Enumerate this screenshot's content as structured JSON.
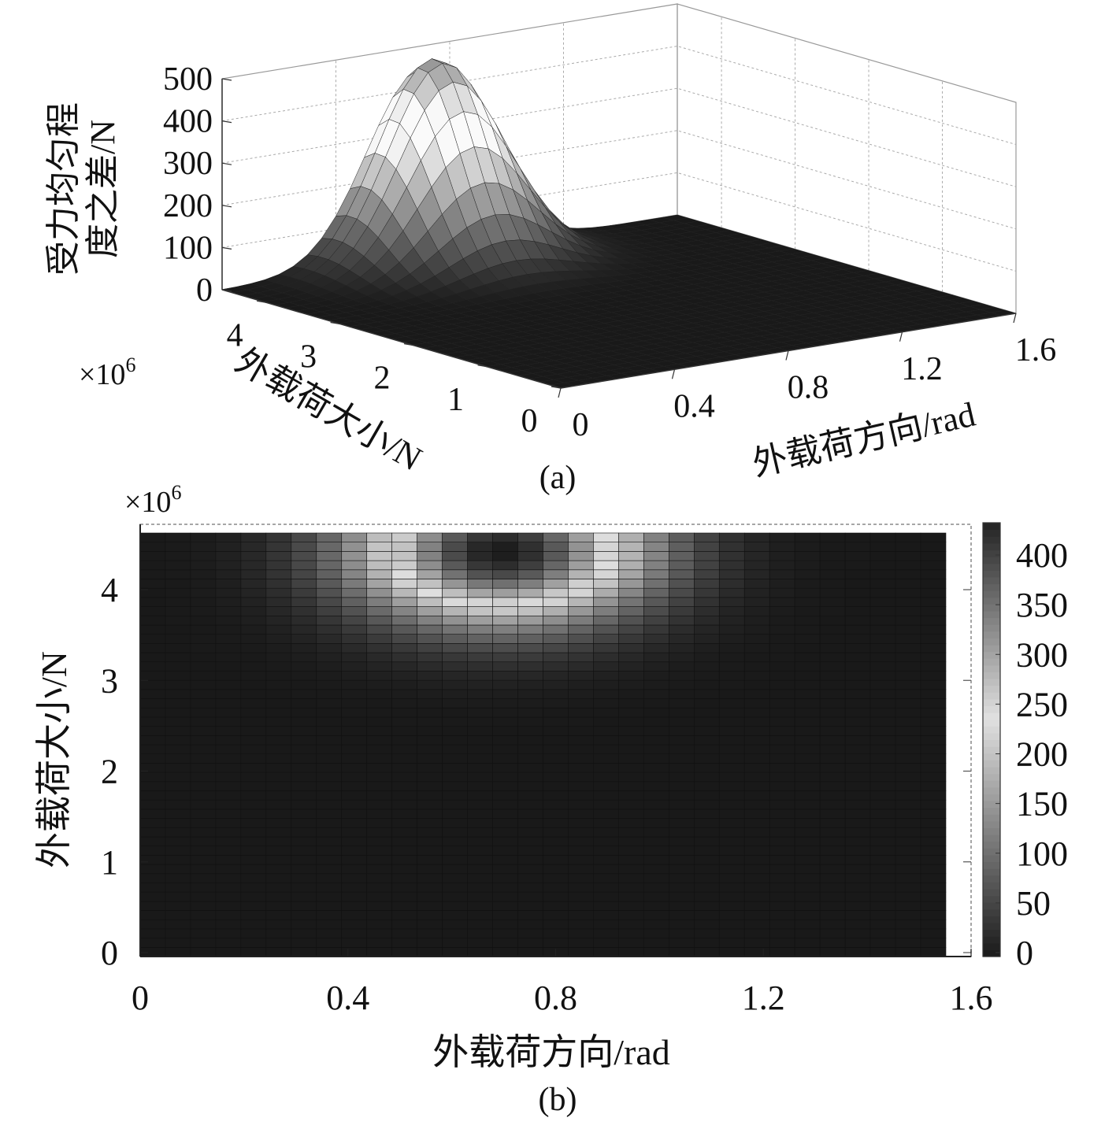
{
  "chart_data": [
    {
      "id": "a",
      "type": "surface",
      "panel_label": "(a)",
      "zlabel_lines": [
        "受力均匀程",
        "度之差/N"
      ],
      "xlabel": "外载荷方向/rad",
      "ylabel": "外载荷大小/N",
      "y_exponent": "×10",
      "y_exponent_power": "6",
      "x_ticks": [
        "0",
        "0.4",
        "0.8",
        "1.2",
        "1.6"
      ],
      "y_ticks": [
        "0",
        "1",
        "2",
        "3",
        "4"
      ],
      "z_ticks": [
        "0",
        "100",
        "200",
        "300",
        "400",
        "500"
      ],
      "xlim": [
        0,
        1.6
      ],
      "ylim": [
        0,
        4.6
      ],
      "zlim": [
        0,
        500
      ],
      "grid": true,
      "colormap": "gray",
      "grid_cells": [
        32,
        32
      ],
      "surface_peak": {
        "direction_rad": 0.7,
        "load_N": 4400000,
        "value_N": 480
      }
    },
    {
      "id": "b",
      "type": "heatmap",
      "panel_label": "(b)",
      "xlabel": "外载荷方向/rad",
      "ylabel": "外载荷大小/N",
      "y_exponent": "×10",
      "y_exponent_power": "6",
      "x_ticks": [
        "0",
        "0.4",
        "0.8",
        "1.2",
        "1.6"
      ],
      "y_ticks": [
        "0",
        "1",
        "2",
        "3",
        "4"
      ],
      "xlim": [
        0,
        1.6
      ],
      "ylim": [
        0,
        4.6
      ],
      "grid_cells": [
        32,
        46
      ],
      "colorbar_ticks": [
        "0",
        "50",
        "100",
        "150",
        "200",
        "250",
        "300",
        "350",
        "400"
      ],
      "colorbar_range": [
        0,
        425
      ],
      "colormap": "gray",
      "grid": true
    }
  ],
  "colors": {
    "ink": "#111111",
    "grid": "#999999",
    "background": "#ffffff"
  }
}
